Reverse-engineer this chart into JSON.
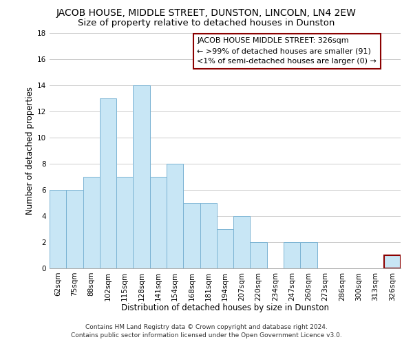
{
  "title": "JACOB HOUSE, MIDDLE STREET, DUNSTON, LINCOLN, LN4 2EW",
  "subtitle": "Size of property relative to detached houses in Dunston",
  "xlabel": "Distribution of detached houses by size in Dunston",
  "ylabel": "Number of detached properties",
  "footer_line1": "Contains HM Land Registry data © Crown copyright and database right 2024.",
  "footer_line2": "Contains public sector information licensed under the Open Government Licence v3.0.",
  "bin_labels": [
    "62sqm",
    "75sqm",
    "88sqm",
    "102sqm",
    "115sqm",
    "128sqm",
    "141sqm",
    "154sqm",
    "168sqm",
    "181sqm",
    "194sqm",
    "207sqm",
    "220sqm",
    "234sqm",
    "247sqm",
    "260sqm",
    "273sqm",
    "286sqm",
    "300sqm",
    "313sqm",
    "326sqm"
  ],
  "bar_heights": [
    6,
    6,
    7,
    13,
    7,
    14,
    7,
    8,
    5,
    5,
    3,
    4,
    2,
    0,
    2,
    2,
    0,
    0,
    0,
    0,
    1
  ],
  "bar_color": "#c8e6f5",
  "bar_edge_color": "#7ab3d3",
  "highlight_bar_index": 20,
  "highlight_bar_edge_color": "#8b0000",
  "ylim": [
    0,
    18
  ],
  "yticks": [
    0,
    2,
    4,
    6,
    8,
    10,
    12,
    14,
    16,
    18
  ],
  "grid_color": "#cccccc",
  "background_color": "#ffffff",
  "legend_title": "JACOB HOUSE MIDDLE STREET: 326sqm",
  "legend_line1": "← >99% of detached houses are smaller (91)",
  "legend_line2": "<1% of semi-detached houses are larger (0) →",
  "legend_box_edge_color": "#8b0000",
  "title_fontsize": 10,
  "subtitle_fontsize": 9.5,
  "xlabel_fontsize": 8.5,
  "ylabel_fontsize": 8.5,
  "tick_fontsize": 7.5,
  "legend_fontsize": 8,
  "footer_fontsize": 6.5
}
